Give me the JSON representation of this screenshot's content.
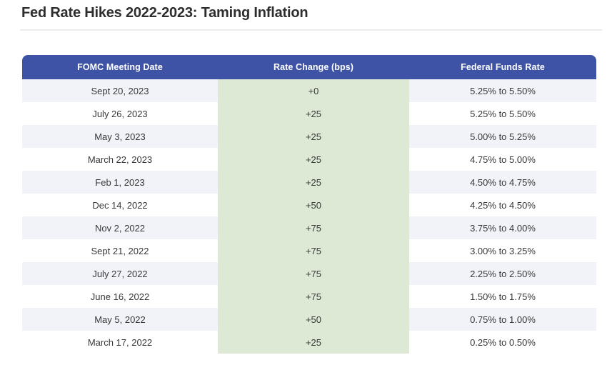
{
  "page": {
    "title": "Fed Rate Hikes 2022-2023: Taming Inflation"
  },
  "table": {
    "columns": [
      "FOMC Meeting Date",
      "Rate Change (bps)",
      "Federal Funds Rate"
    ],
    "rows": [
      {
        "date": "Sept 20, 2023",
        "change": "+0",
        "rate": "5.25% to 5.50%"
      },
      {
        "date": "July 26, 2023",
        "change": "+25",
        "rate": "5.25% to 5.50%"
      },
      {
        "date": "May 3, 2023",
        "change": "+25",
        "rate": "5.00% to 5.25%"
      },
      {
        "date": "March 22, 2023",
        "change": "+25",
        "rate": "4.75% to 5.00%"
      },
      {
        "date": "Feb 1, 2023",
        "change": "+25",
        "rate": "4.50% to 4.75%"
      },
      {
        "date": "Dec 14, 2022",
        "change": "+50",
        "rate": "4.25% to 4.50%"
      },
      {
        "date": "Nov 2, 2022",
        "change": "+75",
        "rate": "3.75% to 4.00%"
      },
      {
        "date": "Sept 21, 2022",
        "change": "+75",
        "rate": "3.00% to 3.25%"
      },
      {
        "date": "July 27, 2022",
        "change": "+75",
        "rate": "2.25% to 2.50%"
      },
      {
        "date": "June 16, 2022",
        "change": "+75",
        "rate": "1.50% to 1.75%"
      },
      {
        "date": "May 5, 2022",
        "change": "+50",
        "rate": "0.75% to 1.00%"
      },
      {
        "date": "March 17, 2022",
        "change": "+25",
        "rate": "0.25% to 0.50%"
      }
    ]
  },
  "colors": {
    "header_bg": "#3f53a6",
    "header_text": "#ffffff",
    "green_col": "#dde9d5",
    "alt_row": "#f2f3f8",
    "row_text": "#383838",
    "title_text": "#2e2e2e",
    "divider": "#ededed"
  },
  "chart_data": {
    "type": "table",
    "title": "Fed Rate Hikes 2022-2023: Taming Inflation",
    "columns": [
      "FOMC Meeting Date",
      "Rate Change (bps)",
      "Federal Funds Rate"
    ],
    "rows": [
      [
        "Sept 20, 2023",
        "+0",
        "5.25% to 5.50%"
      ],
      [
        "July 26, 2023",
        "+25",
        "5.25% to 5.50%"
      ],
      [
        "May 3, 2023",
        "+25",
        "5.00% to 5.25%"
      ],
      [
        "March 22, 2023",
        "+25",
        "4.75% to 5.00%"
      ],
      [
        "Feb 1, 2023",
        "+25",
        "4.50% to 4.75%"
      ],
      [
        "Dec 14, 2022",
        "+50",
        "4.25% to 4.50%"
      ],
      [
        "Nov 2, 2022",
        "+75",
        "3.75% to 4.00%"
      ],
      [
        "Sept 21, 2022",
        "+75",
        "3.00% to 3.25%"
      ],
      [
        "July 27, 2022",
        "+75",
        "2.25% to 2.50%"
      ],
      [
        "June 16, 2022",
        "+75",
        "1.50% to 1.75%"
      ],
      [
        "May 5, 2022",
        "+50",
        "0.75% to 1.00%"
      ],
      [
        "March 17, 2022",
        "+25",
        "0.25% to 0.50%"
      ]
    ],
    "layout_hints": {
      "highlighted_column": "Rate Change (bps)",
      "highlight_color": "#dde9d5",
      "row_striping": "odd rows shaded #f2f3f8",
      "header_style": "bold white on indigo blue, rounded top corners"
    }
  }
}
